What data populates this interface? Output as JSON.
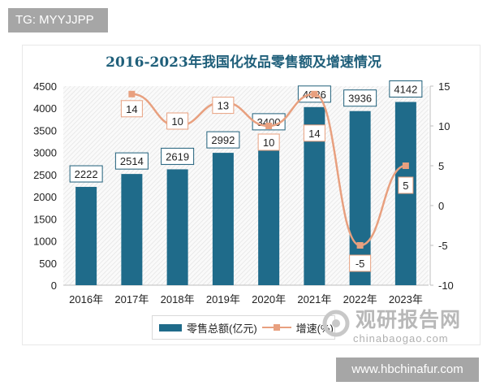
{
  "header_tag": "TG: MYYJJPP",
  "footer_url": "www.hbchinafur.com",
  "watermark": {
    "cn": "观研报告网",
    "en": "chinabaogao.com"
  },
  "colors": {
    "bar": "#1f6b8a",
    "line": "#e8a07f",
    "title": "#1f5f7a"
  },
  "chart_data": {
    "type": "bar+line",
    "title": "2016-2023年我国化妆品零售额及增速情况",
    "categories": [
      "2016年",
      "2017年",
      "2018年",
      "2019年",
      "2020年",
      "2021年",
      "2022年",
      "2023年"
    ],
    "series": [
      {
        "name": "零售总额(亿元)",
        "type": "bar",
        "axis": "left",
        "values": [
          2222,
          2514,
          2619,
          2992,
          3400,
          4026,
          3936,
          4142
        ]
      },
      {
        "name": "增速(%)",
        "type": "line",
        "axis": "right",
        "values": [
          null,
          14,
          10,
          13,
          10,
          14,
          -5,
          5
        ]
      }
    ],
    "left_axis": {
      "ylim": [
        0,
        4500
      ],
      "ticks": [
        0,
        500,
        1000,
        1500,
        2000,
        2500,
        3000,
        3500,
        4000,
        4500
      ]
    },
    "right_axis": {
      "ylim": [
        -10,
        15
      ],
      "ticks": [
        -10,
        -5,
        0,
        5,
        10,
        15
      ]
    },
    "legend": "bottom",
    "grid": false
  }
}
